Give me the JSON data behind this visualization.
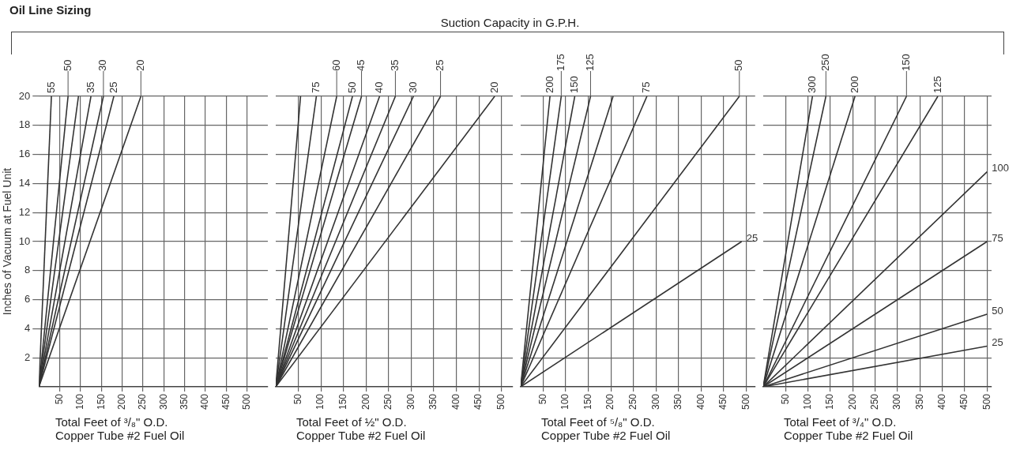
{
  "chart_data": [
    {
      "type": "line",
      "title": "Oil Line Sizing",
      "xlabel": "Total Feet of ³/₈\" O.D. Copper Tube #2 Fuel Oil",
      "ylabel": "Inches of Vacuum at Fuel Unit",
      "xlim": [
        0,
        550
      ],
      "xticks": [
        50,
        100,
        150,
        200,
        250,
        300,
        350,
        400,
        450,
        500
      ],
      "ylim": [
        0,
        20
      ],
      "yticks": [
        2,
        4,
        6,
        8,
        10,
        12,
        14,
        16,
        18,
        20
      ],
      "grid": true,
      "legend": false,
      "marker": "none",
      "series": [
        {
          "name": "55",
          "color": "#333333",
          "x": [
            0,
            30
          ],
          "values": [
            0,
            20
          ]
        },
        {
          "name": "50",
          "color": "#333333",
          "x": [
            0,
            70
          ],
          "values": [
            0,
            20
          ]
        },
        {
          "color": "#333333",
          "x": [
            0,
            95
          ],
          "values": [
            0,
            20
          ]
        },
        {
          "name": "35",
          "color": "#333333",
          "x": [
            0,
            125
          ],
          "values": [
            0,
            20
          ]
        },
        {
          "name": "30",
          "color": "#333333",
          "x": [
            0,
            155
          ],
          "values": [
            0,
            20
          ]
        },
        {
          "name": "25",
          "color": "#333333",
          "x": [
            0,
            180
          ],
          "values": [
            0,
            20
          ]
        },
        {
          "name": "20",
          "color": "#333333",
          "x": [
            0,
            245
          ],
          "values": [
            0,
            20
          ]
        }
      ]
    },
    {
      "type": "line",
      "title": "Suction Capacity in G.P.H.",
      "xlabel": "Total Feet of ½\" O.D. Copper Tube #2 Fuel Oil",
      "xlim": [
        0,
        525
      ],
      "xticks": [
        50,
        100,
        150,
        200,
        250,
        300,
        350,
        400,
        450,
        500
      ],
      "ylim": [
        0,
        20
      ],
      "yticks": [
        2,
        4,
        6,
        8,
        10,
        12,
        14,
        16,
        18,
        20
      ],
      "tick_labels": "x",
      "grid": true,
      "legend": false,
      "marker": "none",
      "series": [
        {
          "color": "#333333",
          "x": [
            0,
            55
          ],
          "values": [
            0,
            20
          ]
        },
        {
          "name": "75",
          "color": "#333333",
          "x": [
            0,
            90
          ],
          "values": [
            0,
            20
          ]
        },
        {
          "name": "60",
          "color": "#333333",
          "x": [
            0,
            135
          ],
          "values": [
            0,
            20
          ]
        },
        {
          "name": "50",
          "color": "#333333",
          "x": [
            0,
            170
          ],
          "values": [
            0,
            20
          ]
        },
        {
          "name": "45",
          "color": "#333333",
          "x": [
            0,
            190
          ],
          "values": [
            0,
            20
          ]
        },
        {
          "name": "40",
          "color": "#333333",
          "x": [
            0,
            230
          ],
          "values": [
            0,
            20
          ]
        },
        {
          "name": "35",
          "color": "#333333",
          "x": [
            0,
            265
          ],
          "values": [
            0,
            20
          ]
        },
        {
          "name": "30",
          "color": "#333333",
          "x": [
            0,
            305
          ],
          "values": [
            0,
            20
          ]
        },
        {
          "name": "25",
          "color": "#333333",
          "x": [
            0,
            365
          ],
          "values": [
            0,
            20
          ]
        },
        {
          "name": "20",
          "color": "#333333",
          "x": [
            0,
            485
          ],
          "values": [
            0,
            20
          ]
        }
      ]
    },
    {
      "type": "line",
      "xlabel": "Total Feet of ⁵/₈\" O.D. Copper Tube #2 Fuel Oil",
      "xlim": [
        0,
        520
      ],
      "xticks": [
        50,
        100,
        150,
        200,
        250,
        300,
        350,
        400,
        450,
        500
      ],
      "ylim": [
        0,
        20
      ],
      "yticks": [
        2,
        4,
        6,
        8,
        10,
        12,
        14,
        16,
        18,
        20
      ],
      "tick_labels": "x",
      "grid": true,
      "legend": false,
      "marker": "none",
      "series": [
        {
          "name": "200",
          "color": "#333333",
          "x": [
            0,
            65
          ],
          "values": [
            0,
            20
          ]
        },
        {
          "name": "175",
          "color": "#333333",
          "x": [
            0,
            90
          ],
          "values": [
            0,
            20
          ]
        },
        {
          "name": "150",
          "color": "#333333",
          "x": [
            0,
            120
          ],
          "values": [
            0,
            20
          ]
        },
        {
          "name": "125",
          "color": "#333333",
          "x": [
            0,
            155
          ],
          "values": [
            0,
            20
          ]
        },
        {
          "color": "#333333",
          "x": [
            0,
            205
          ],
          "values": [
            0,
            20
          ]
        },
        {
          "name": "75",
          "color": "#333333",
          "x": [
            0,
            280
          ],
          "values": [
            0,
            20
          ]
        },
        {
          "name": "50",
          "color": "#333333",
          "x": [
            0,
            485
          ],
          "values": [
            0,
            20
          ]
        },
        {
          "name": "25",
          "color": "#333333",
          "x": [
            0,
            490
          ],
          "values": [
            0,
            10
          ]
        }
      ]
    },
    {
      "type": "line",
      "xlabel": "Total Feet of ³/₄\" O.D. Copper Tube #2 Fuel Oil",
      "xlim": [
        0,
        510
      ],
      "xticks": [
        50,
        100,
        150,
        200,
        250,
        300,
        350,
        400,
        450,
        500
      ],
      "ylim": [
        0,
        20
      ],
      "yticks": [
        2,
        4,
        6,
        8,
        10,
        12,
        14,
        16,
        18,
        20
      ],
      "tick_labels": "x",
      "grid": true,
      "legend": false,
      "marker": "none",
      "series": [
        {
          "name": "300",
          "color": "#333333",
          "x": [
            0,
            110
          ],
          "values": [
            0,
            20
          ]
        },
        {
          "name": "250",
          "color": "#333333",
          "x": [
            0,
            140
          ],
          "values": [
            0,
            20
          ]
        },
        {
          "name": "200",
          "color": "#333333",
          "x": [
            0,
            205
          ],
          "values": [
            0,
            20
          ]
        },
        {
          "name": "150",
          "color": "#333333",
          "x": [
            0,
            320
          ],
          "values": [
            0,
            20
          ]
        },
        {
          "name": "125",
          "color": "#333333",
          "x": [
            0,
            390
          ],
          "values": [
            0,
            20
          ]
        },
        {
          "name": "100",
          "color": "#333333",
          "x": [
            0,
            500
          ],
          "values": [
            0,
            14.8
          ]
        },
        {
          "name": "75",
          "color": "#333333",
          "x": [
            0,
            500
          ],
          "values": [
            0,
            10
          ]
        },
        {
          "name": "50",
          "color": "#333333",
          "x": [
            0,
            500
          ],
          "values": [
            0,
            5
          ]
        },
        {
          "name": "25",
          "color": "#333333",
          "x": [
            0,
            500
          ],
          "values": [
            0,
            2.8
          ]
        }
      ]
    }
  ]
}
